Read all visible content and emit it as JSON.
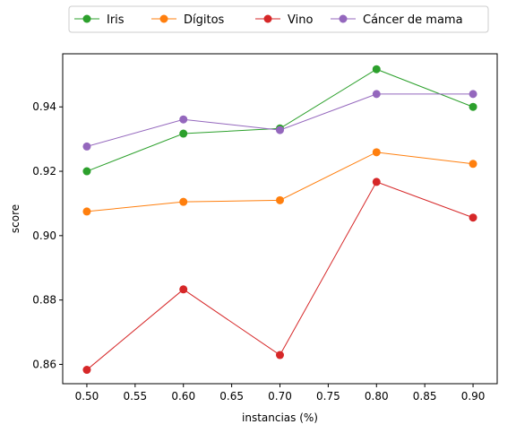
{
  "chart_data": {
    "type": "line",
    "xlabel": "instancias (%)",
    "ylabel": "score",
    "xlim": [
      0.475,
      0.925
    ],
    "ylim": [
      0.854,
      0.9565
    ],
    "xticks": [
      0.5,
      0.55,
      0.6,
      0.65,
      0.7,
      0.75,
      0.8,
      0.85,
      0.9
    ],
    "xtick_labels": [
      "0.50",
      "0.55",
      "0.60",
      "0.65",
      "0.70",
      "0.75",
      "0.80",
      "0.85",
      "0.90"
    ],
    "yticks": [
      0.86,
      0.88,
      0.9,
      0.92,
      0.94
    ],
    "ytick_labels": [
      "0.86",
      "0.88",
      "0.90",
      "0.92",
      "0.94"
    ],
    "grid": false,
    "legend_position": "top-center",
    "x": [
      0.5,
      0.6,
      0.7,
      0.8,
      0.9
    ],
    "series": [
      {
        "name": "Iris",
        "color": "#2ca02c",
        "values": [
          0.92,
          0.9317,
          0.9333,
          0.9517,
          0.94
        ]
      },
      {
        "name": "Dígitos",
        "color": "#ff7f0e",
        "values": [
          0.9075,
          0.9105,
          0.911,
          0.9259,
          0.9223
        ]
      },
      {
        "name": "Vino",
        "color": "#d62728",
        "values": [
          0.8583,
          0.8833,
          0.8629,
          0.9167,
          0.9056
        ]
      },
      {
        "name": "Cáncer de mama",
        "color": "#9467bd",
        "values": [
          0.9277,
          0.9361,
          0.9328,
          0.944,
          0.944
        ]
      }
    ]
  }
}
